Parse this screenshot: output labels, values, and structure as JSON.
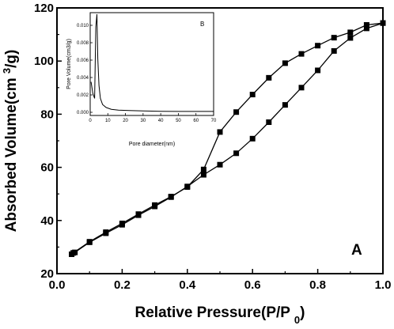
{
  "chart_data": [
    {
      "type": "line",
      "panel_label": "A",
      "xlabel": "Relative Pressure(P/P0)",
      "ylabel": "Absorbed Volume(cm3/g)",
      "xlim": [
        0.0,
        1.0
      ],
      "ylim": [
        20,
        120
      ],
      "xticks": [
        "0.0",
        "0.2",
        "0.4",
        "0.6",
        "0.8",
        "1.0"
      ],
      "yticks": [
        "20",
        "40",
        "60",
        "80",
        "100",
        "120"
      ],
      "marker": "square",
      "series": [
        {
          "x": [
            0.045,
            0.055,
            0.1,
            0.15,
            0.2,
            0.25,
            0.3,
            0.35,
            0.4,
            0.45,
            0.5,
            0.55,
            0.6,
            0.65,
            0.7,
            0.75,
            0.8,
            0.85,
            0.9,
            0.95,
            1.0
          ],
          "y": [
            27.3,
            28.0,
            31.8,
            35.2,
            38.4,
            42.0,
            45.3,
            48.8,
            52.8,
            57.2,
            61.0,
            65.3,
            70.8,
            77.0,
            83.5,
            90.0,
            96.5,
            103.8,
            108.7,
            112.3,
            114.3
          ]
        },
        {
          "x": [
            1.0,
            0.95,
            0.9,
            0.85,
            0.8,
            0.75,
            0.7,
            0.65,
            0.6,
            0.55,
            0.5,
            0.45,
            0.4,
            0.35,
            0.3,
            0.25,
            0.2,
            0.15,
            0.1,
            0.05
          ],
          "y": [
            114.3,
            113.6,
            110.8,
            108.8,
            105.8,
            102.7,
            99.2,
            93.7,
            87.4,
            80.8,
            73.3,
            59.2,
            52.6,
            49.0,
            45.8,
            42.4,
            38.9,
            35.6,
            32.0,
            27.8
          ]
        }
      ]
    },
    {
      "type": "line",
      "panel_label": "B",
      "xlabel": "Pore diameter(nm)",
      "ylabel": "Pore Volume(cm3/g)",
      "xlim": [
        0,
        70
      ],
      "ylim": [
        0,
        0.01
      ],
      "xticks": [
        "0",
        "10",
        "20",
        "30",
        "40",
        "50",
        "60",
        "70"
      ],
      "yticks": [
        "0.000",
        "0.002",
        "0.004",
        "0.006",
        "0.008",
        "0.010"
      ],
      "series": [
        {
          "x": [
            0.5,
            1.5,
            2.5,
            3.2,
            3.8,
            4.3,
            5.0,
            5.8,
            7.0,
            9.0,
            12.0,
            16.0,
            22.0,
            30.0,
            40.0,
            50.0,
            60.0,
            70.0
          ],
          "y": [
            0.0035,
            0.0022,
            0.0016,
            0.0098,
            0.0115,
            0.0062,
            0.0031,
            0.0016,
            0.0009,
            0.00055,
            0.00035,
            0.00025,
            0.0002,
            0.00015,
            0.00012,
            0.0001,
            0.0001,
            0.0001
          ]
        }
      ]
    }
  ]
}
